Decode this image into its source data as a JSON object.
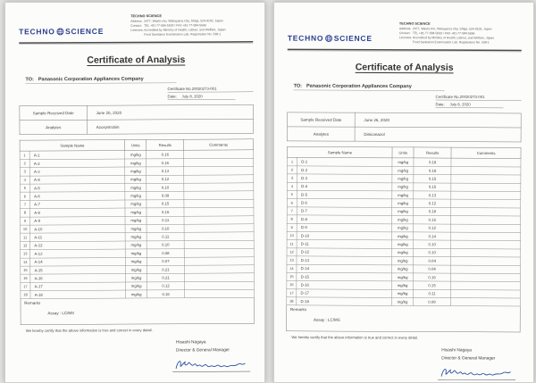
{
  "colors": {
    "logo_blue": "#2b3f8e",
    "ink_blue": "#2b4fa0",
    "text": "#3e3e3e",
    "border": "#777777",
    "paper": "#fcfcfb",
    "background": "#e3e3e1"
  },
  "documents": [
    {
      "letterhead": {
        "logo_left": "TECHNO",
        "logo_right": "SCIENCE",
        "company": "TECHNO SCIENCE",
        "info_lines": [
          {
            "label": "Address:",
            "text": "2477, Washi-cho, Wakayama City, Shiga, 524-0102, Japan"
          },
          {
            "label": "Contact:",
            "text": "TEL +81-77-584-5633 / FAX +81-77-584-5696"
          },
          {
            "label": "Licenses:",
            "text": "Accredited by Ministry of Health, Labour, and Welfare, Japan"
          },
          {
            "label": "",
            "text": "Food Sanitation Examination Lab.  Registration No. 538-1"
          }
        ]
      },
      "title": "Certificate of Analysis",
      "to_label": "TO:",
      "to_value": "Panasonic Corporation Appliances Company",
      "certificate_no": "Certificate No.20020273-001",
      "date_label": "Date:",
      "date_value": "July 8, 2020",
      "sample_info": [
        {
          "label": "Sample Received Date",
          "value": "June 26, 2020"
        },
        {
          "label": "Analytes",
          "value": "Azoxystrobin"
        }
      ],
      "table": {
        "headers": [
          "Sample Name",
          "Units",
          "Results",
          "Comments"
        ],
        "rows": [
          [
            "1",
            "A-1",
            "mg/kg",
            "0.16",
            ""
          ],
          [
            "2",
            "A-2",
            "mg/kg",
            "0.16",
            ""
          ],
          [
            "3",
            "A-3",
            "mg/kg",
            "0.13",
            ""
          ],
          [
            "4",
            "A-4",
            "mg/kg",
            "0.12",
            ""
          ],
          [
            "5",
            "A-5",
            "mg/kg",
            "0.10",
            ""
          ],
          [
            "6",
            "A-6",
            "mg/kg",
            "0.09",
            ""
          ],
          [
            "7",
            "A-7",
            "mg/kg",
            "0.15",
            ""
          ],
          [
            "8",
            "A-8",
            "mg/kg",
            "0.16",
            ""
          ],
          [
            "9",
            "A-9",
            "mg/kg",
            "0.11",
            ""
          ],
          [
            "10",
            "A-10",
            "mg/kg",
            "0.10",
            ""
          ],
          [
            "11",
            "A-11",
            "mg/kg",
            "0.11",
            ""
          ],
          [
            "12",
            "A-12",
            "mg/kg",
            "0.10",
            ""
          ],
          [
            "13",
            "A-13",
            "mg/kg",
            "0.08",
            ""
          ],
          [
            "14",
            "A-14",
            "mg/kg",
            "0.07",
            ""
          ],
          [
            "15",
            "A-15",
            "mg/kg",
            "0.21",
            ""
          ],
          [
            "16",
            "A-16",
            "mg/kg",
            "0.21",
            ""
          ],
          [
            "17",
            "A-17",
            "mg/kg",
            "0.12",
            ""
          ],
          [
            "18",
            "A-18",
            "mg/kg",
            "0.16",
            ""
          ]
        ]
      },
      "remarks": {
        "label": "Remarks",
        "assay_line": "Assay : LC/MS"
      },
      "certify": "We hereby certify that the above information is true and correct in every detail.",
      "signer": {
        "name": "Hisashi Nagaya",
        "title": "Director & General Manager"
      }
    },
    {
      "letterhead": {
        "logo_left": "TECHNO",
        "logo_right": "SCIENCE",
        "company": "TECHNO SCIENCE",
        "info_lines": [
          {
            "label": "Address:",
            "text": "2477, Washi-cho, Wakayama City, Shiga, 524-0102, Japan"
          },
          {
            "label": "Contact:",
            "text": "TEL +81-77-584-5633 / FAX +81-77-584-5696"
          },
          {
            "label": "Licenses:",
            "text": "Accredited by Ministry of Health, Labour, and Welfare, Japan"
          },
          {
            "label": "",
            "text": "Food Sanitation Examination Lab.  Registration No. 538-1"
          }
        ]
      },
      "title": "Certificate of Analysis",
      "to_label": "TO:",
      "to_value": "Panasonic Corporation Appliances Company",
      "certificate_no": "Certificate No.20020273-001",
      "date_label": "Date:",
      "date_value": "July 8, 2020",
      "sample_info": [
        {
          "label": "Sample Received Date",
          "value": "June 26, 2020"
        },
        {
          "label": "Analytes",
          "value": "Diniconazol"
        }
      ],
      "table": {
        "headers": [
          "Sample Name",
          "Units",
          "Results",
          "Comments"
        ],
        "rows": [
          [
            "1",
            "D-1",
            "mg/kg",
            "0.18",
            ""
          ],
          [
            "2",
            "D-2",
            "mg/kg",
            "0.18",
            ""
          ],
          [
            "3",
            "D-3",
            "mg/kg",
            "0.15",
            ""
          ],
          [
            "4",
            "D-4",
            "mg/kg",
            "0.15",
            ""
          ],
          [
            "5",
            "D-5",
            "mg/kg",
            "0.13",
            ""
          ],
          [
            "6",
            "D-6",
            "mg/kg",
            "0.12",
            ""
          ],
          [
            "7",
            "D-7",
            "mg/kg",
            "0.18",
            ""
          ],
          [
            "8",
            "D-8",
            "mg/kg",
            "0.16",
            ""
          ],
          [
            "9",
            "D-9",
            "mg/kg",
            "0.12",
            ""
          ],
          [
            "10",
            "D-10",
            "mg/kg",
            "0.14",
            ""
          ],
          [
            "11",
            "D-11",
            "mg/kg",
            "0.10",
            ""
          ],
          [
            "12",
            "D-12",
            "mg/kg",
            "0.10",
            ""
          ],
          [
            "13",
            "D-13",
            "mg/kg",
            "0.04",
            ""
          ],
          [
            "14",
            "D-14",
            "mg/kg",
            "0.04",
            ""
          ],
          [
            "15",
            "D-15",
            "mg/kg",
            "0.16",
            ""
          ],
          [
            "16",
            "D-16",
            "mg/kg",
            "0.15",
            ""
          ],
          [
            "17",
            "D-17",
            "mg/kg",
            "0.11",
            ""
          ],
          [
            "18",
            "D-18",
            "mg/kg",
            "0.09",
            ""
          ]
        ]
      },
      "remarks": {
        "label": "Remarks",
        "assay_line": "Assay : LC/MS"
      },
      "certify": "We hereby certify that the above information is true and correct in every detail.",
      "signer": {
        "name": "Hisashi Nagaya",
        "title": "Director & General Manager"
      }
    }
  ]
}
